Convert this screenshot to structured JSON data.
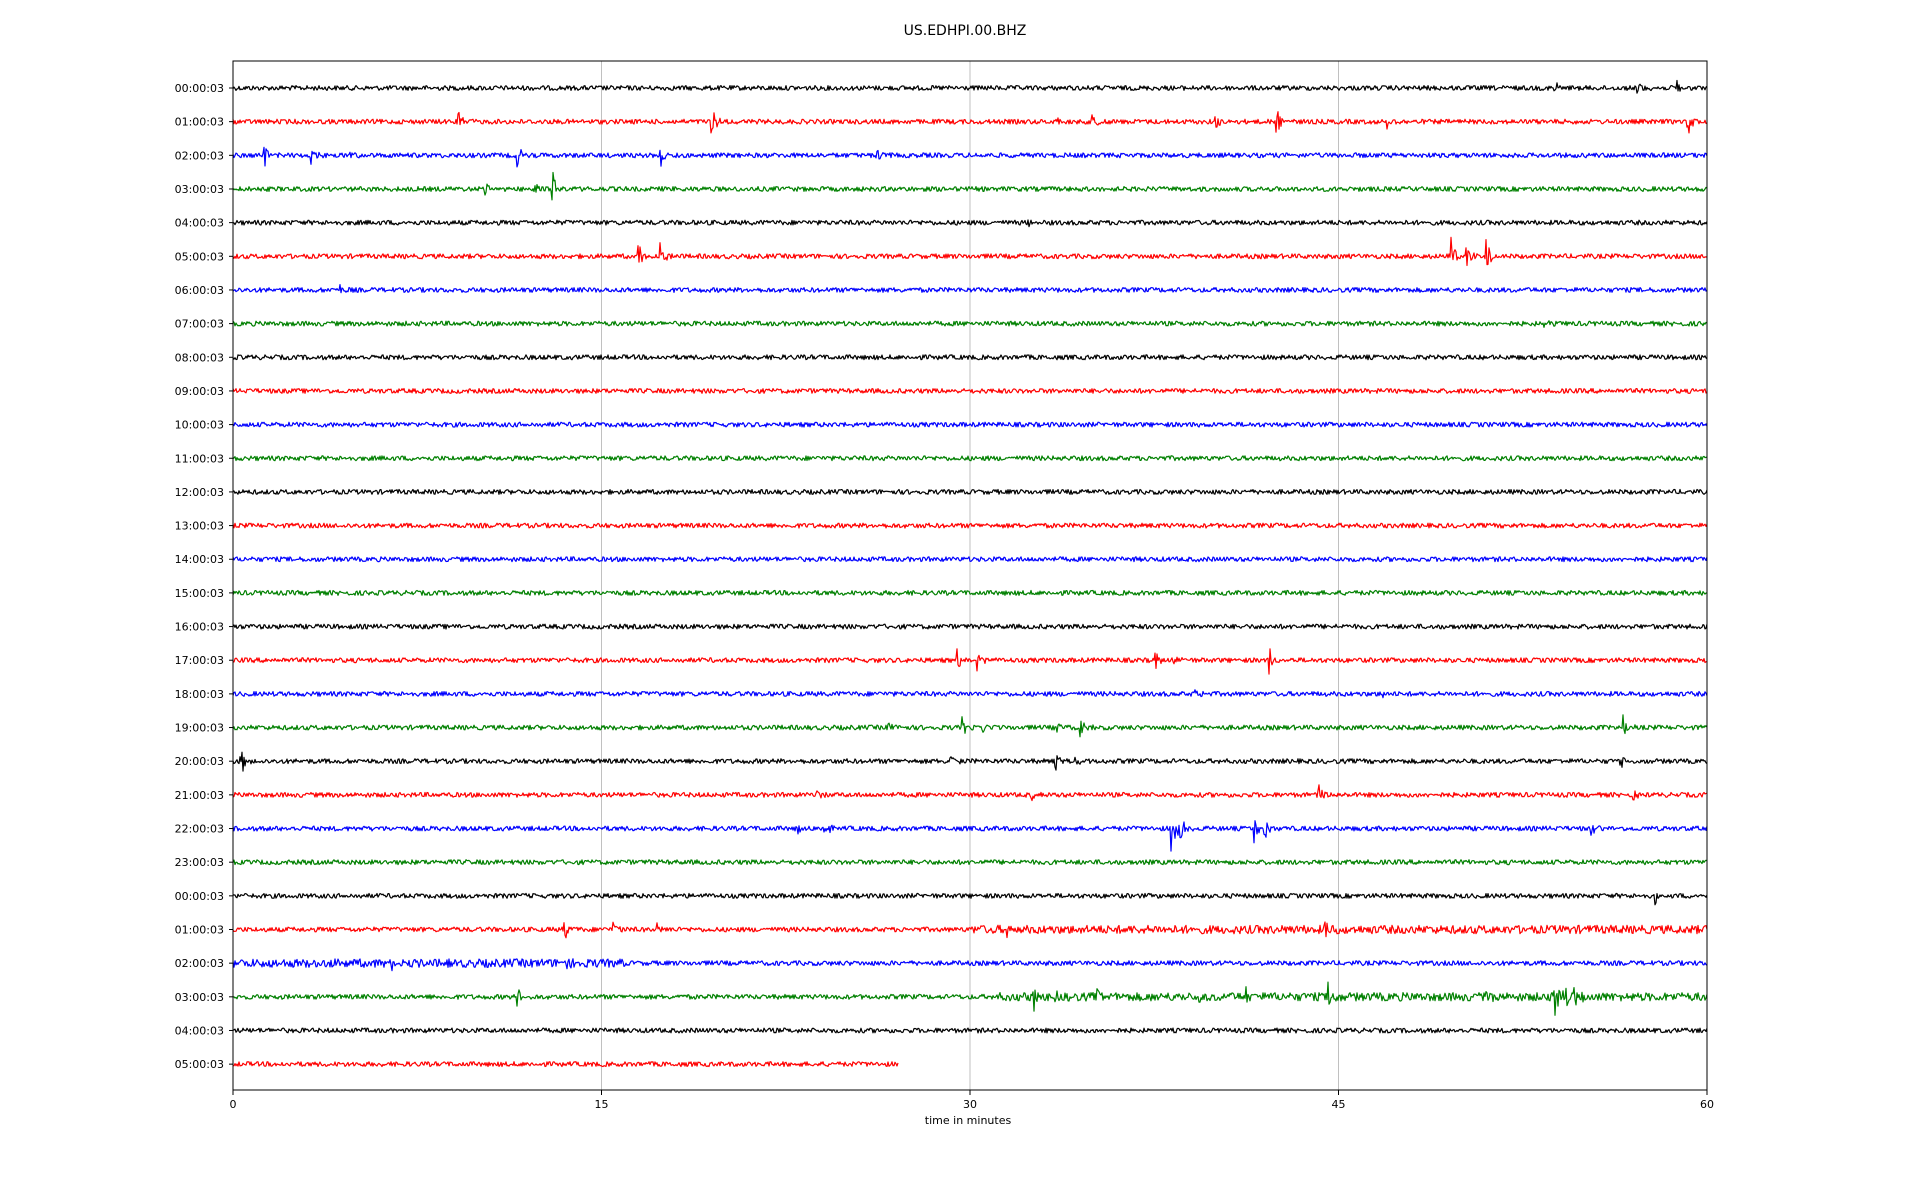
{
  "chart_data": {
    "type": "line",
    "title": "US.EDHPI.00.BHZ",
    "xlabel": "time in minutes",
    "ylabel": "",
    "xlim": [
      0,
      60
    ],
    "x_ticks": [
      0,
      15,
      30,
      45,
      60
    ],
    "x_tick_labels": [
      "0",
      "15",
      "30",
      "45",
      "60"
    ],
    "grid": "vertical lines at x ticks",
    "color_cycle": [
      "#000000",
      "#ff0000",
      "#0000ff",
      "#008000"
    ],
    "row_labels": [
      "00:00:03",
      "01:00:03",
      "02:00:03",
      "03:00:03",
      "04:00:03",
      "05:00:03",
      "06:00:03",
      "07:00:03",
      "08:00:03",
      "09:00:03",
      "10:00:03",
      "11:00:03",
      "12:00:03",
      "13:00:03",
      "14:00:03",
      "15:00:03",
      "16:00:03",
      "17:00:03",
      "18:00:03",
      "19:00:03",
      "20:00:03",
      "21:00:03",
      "22:00:03",
      "23:00:03",
      "00:00:03",
      "01:00:03",
      "02:00:03",
      "03:00:03",
      "04:00:03",
      "05:00:03"
    ],
    "rows": [
      {
        "label_index": 0,
        "end_minute": 60,
        "events": [
          [
            53.8,
            0.6
          ],
          [
            57.2,
            0.35
          ],
          [
            58.8,
            0.5
          ]
        ]
      },
      {
        "label_index": 1,
        "end_minute": 60,
        "events": [
          [
            9.2,
            0.5
          ],
          [
            19.5,
            0.9
          ],
          [
            33.5,
            0.4
          ],
          [
            35.0,
            0.4
          ],
          [
            40.0,
            0.35
          ],
          [
            42.5,
            1.0
          ],
          [
            47.0,
            0.3
          ],
          [
            59.2,
            1.0
          ]
        ]
      },
      {
        "label_index": 2,
        "end_minute": 60,
        "events": [
          [
            1.3,
            0.8
          ],
          [
            3.2,
            0.6
          ],
          [
            4.8,
            0.35
          ],
          [
            11.6,
            0.6
          ],
          [
            17.4,
            0.8
          ],
          [
            26.2,
            0.5
          ]
        ]
      },
      {
        "label_index": 3,
        "end_minute": 60,
        "events": [
          [
            10.3,
            0.4
          ],
          [
            12.3,
            0.3
          ],
          [
            13.0,
            1.0
          ]
        ]
      },
      {
        "label_index": 4,
        "end_minute": 60,
        "events": [
          [
            32.4,
            0.3
          ]
        ]
      },
      {
        "label_index": 5,
        "end_minute": 60,
        "events": [
          [
            16.5,
            0.9
          ],
          [
            17.4,
            0.8
          ],
          [
            49.6,
            1.3
          ],
          [
            50.2,
            1.0
          ],
          [
            51.0,
            1.4
          ]
        ]
      },
      {
        "label_index": 6,
        "end_minute": 60,
        "events": [
          [
            4.4,
            0.3
          ]
        ]
      },
      {
        "label_index": 7,
        "end_minute": 60,
        "events": [
          [
            53.3,
            0.4
          ]
        ]
      },
      {
        "label_index": 8,
        "end_minute": 60,
        "events": []
      },
      {
        "label_index": 9,
        "end_minute": 60,
        "events": []
      },
      {
        "label_index": 10,
        "end_minute": 60,
        "events": []
      },
      {
        "label_index": 11,
        "end_minute": 60,
        "events": []
      },
      {
        "label_index": 12,
        "end_minute": 60,
        "events": []
      },
      {
        "label_index": 13,
        "end_minute": 60,
        "events": []
      },
      {
        "label_index": 14,
        "end_minute": 60,
        "events": []
      },
      {
        "label_index": 15,
        "end_minute": 60,
        "events": []
      },
      {
        "label_index": 16,
        "end_minute": 60,
        "events": []
      },
      {
        "label_index": 17,
        "end_minute": 60,
        "events": [
          [
            29.5,
            0.6
          ],
          [
            30.3,
            0.6
          ],
          [
            37.5,
            0.6
          ],
          [
            38.2,
            0.5
          ],
          [
            42.2,
            0.8
          ]
        ]
      },
      {
        "label_index": 18,
        "end_minute": 60,
        "events": [
          [
            39.2,
            0.35
          ],
          [
            46.8,
            0.4
          ]
        ]
      },
      {
        "label_index": 19,
        "end_minute": 60,
        "events": [
          [
            26.7,
            0.3
          ],
          [
            29.7,
            0.5
          ],
          [
            30.5,
            0.4
          ],
          [
            33.5,
            0.5
          ],
          [
            34.5,
            0.7
          ],
          [
            56.6,
            0.6
          ]
        ]
      },
      {
        "label_index": 20,
        "end_minute": 60,
        "events": [
          [
            0.3,
            1.0
          ],
          [
            29.2,
            0.4
          ],
          [
            33.5,
            0.6
          ],
          [
            34.3,
            0.35
          ],
          [
            56.5,
            0.3
          ]
        ]
      },
      {
        "label_index": 21,
        "end_minute": 60,
        "events": [
          [
            23.8,
            0.3
          ],
          [
            32.5,
            0.3
          ],
          [
            44.2,
            0.8
          ],
          [
            57.0,
            0.3
          ]
        ]
      },
      {
        "label_index": 22,
        "end_minute": 60,
        "events": [
          [
            23.0,
            0.4
          ],
          [
            24.1,
            0.4
          ],
          [
            38.2,
            1.6
          ],
          [
            38.5,
            1.0
          ],
          [
            41.6,
            0.9
          ],
          [
            42.0,
            0.8
          ],
          [
            55.3,
            0.3
          ]
        ]
      },
      {
        "label_index": 23,
        "end_minute": 60,
        "events": []
      },
      {
        "label_index": 24,
        "end_minute": 60,
        "events": [
          [
            57.9,
            0.6
          ]
        ]
      },
      {
        "label_index": 25,
        "end_minute": 60,
        "events": [
          [
            13.5,
            0.6
          ],
          [
            15.5,
            0.6
          ],
          [
            17.2,
            0.4
          ],
          [
            31.5,
            0.4
          ],
          [
            44.5,
            0.4
          ]
        ],
        "noisy_after_minute": 30
      },
      {
        "label_index": 26,
        "end_minute": 60,
        "events": [
          [
            3.5,
            0.4
          ],
          [
            6.5,
            0.6
          ],
          [
            8.5,
            0.4
          ],
          [
            13.5,
            0.35
          ]
        ],
        "noisy_before_minute": 16
      },
      {
        "label_index": 27,
        "end_minute": 60,
        "events": [
          [
            11.6,
            0.6
          ],
          [
            32.6,
            0.7
          ],
          [
            33.5,
            0.5
          ],
          [
            35.2,
            0.6
          ],
          [
            39.2,
            0.4
          ],
          [
            41.2,
            0.6
          ],
          [
            44.6,
            1.0
          ],
          [
            51.0,
            0.4
          ],
          [
            53.8,
            1.4
          ],
          [
            54.3,
            0.6
          ],
          [
            54.6,
            0.8
          ]
        ],
        "noisy_after_minute": 31
      },
      {
        "label_index": 28,
        "end_minute": 60,
        "events": []
      },
      {
        "label_index": 29,
        "end_minute": 27.1,
        "events": []
      }
    ]
  }
}
